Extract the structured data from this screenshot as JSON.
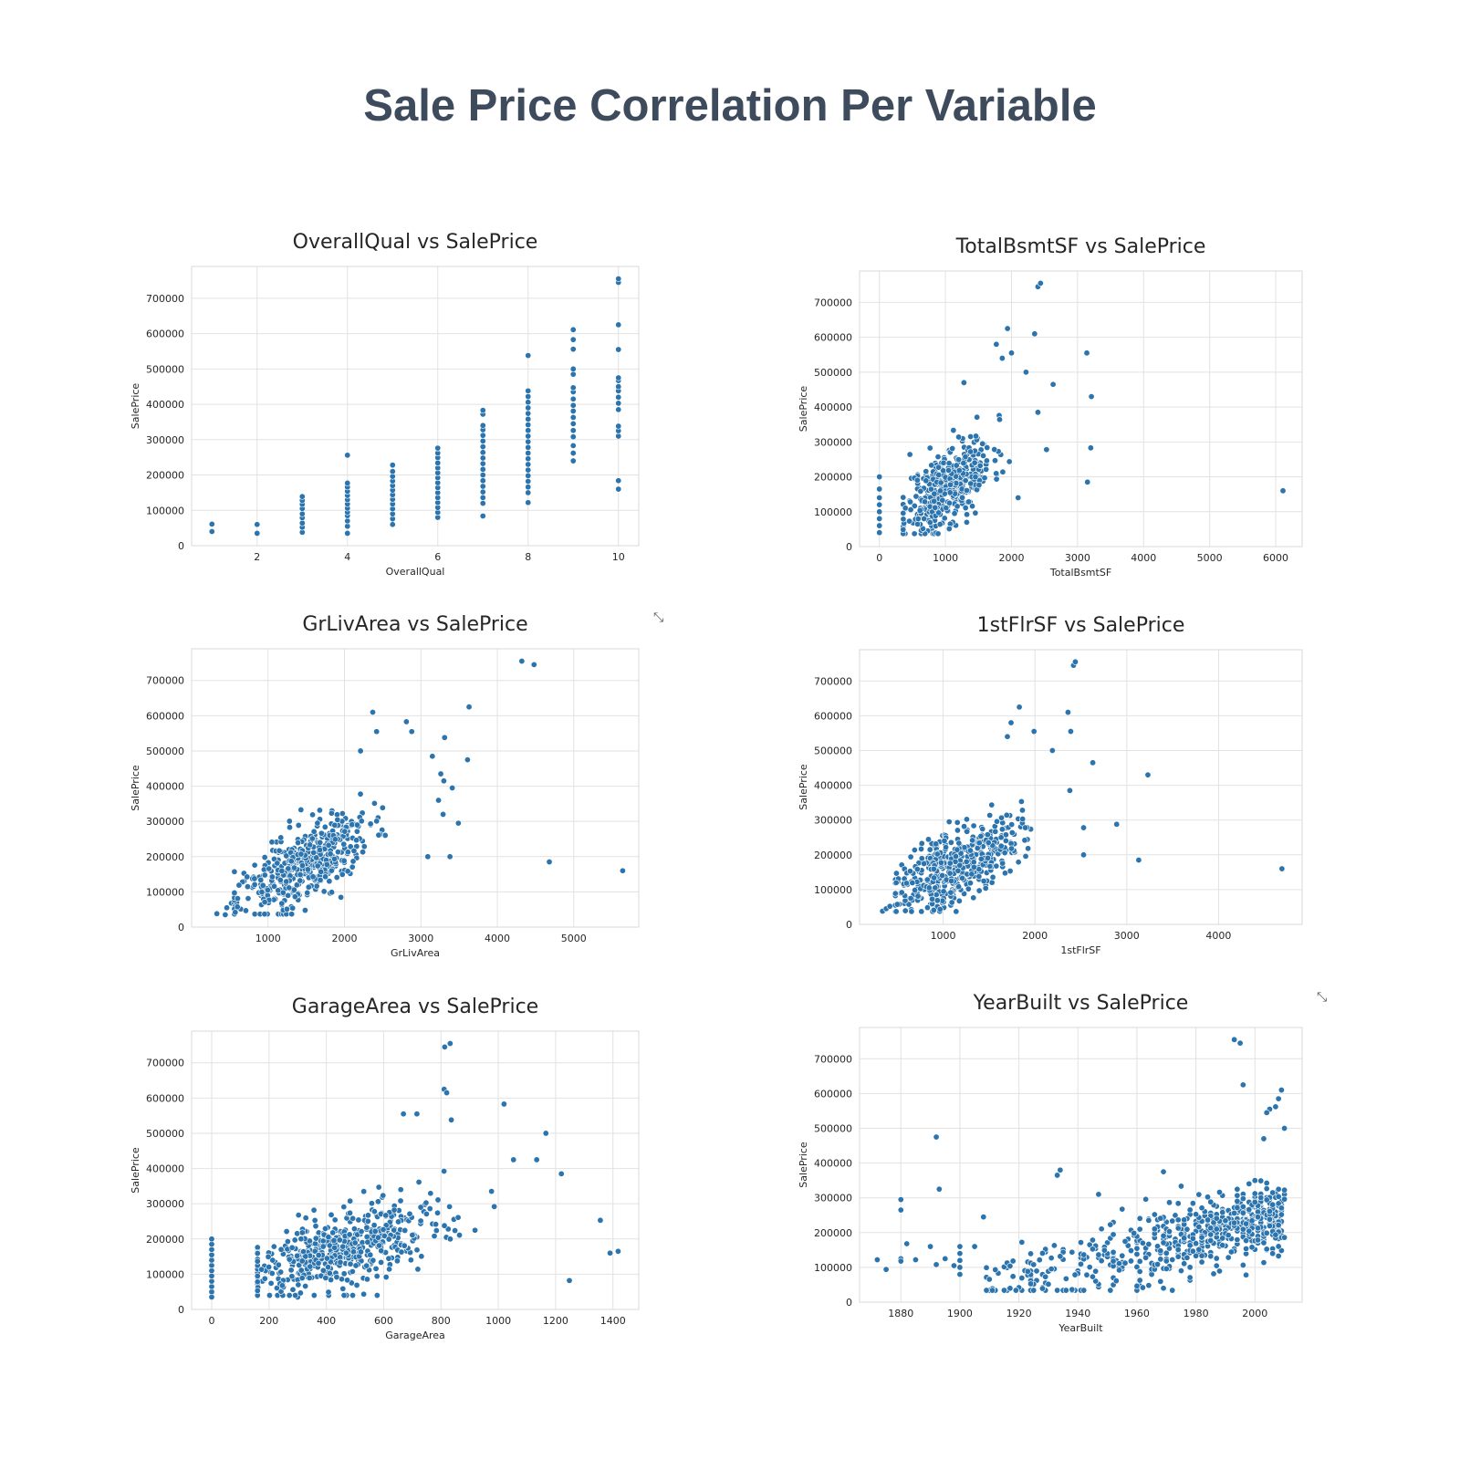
{
  "page": {
    "title": "Sale Price Correlation Per Variable"
  },
  "icons": [
    "expand-icon",
    "expand-icon"
  ],
  "chart_data": [
    {
      "id": "overallqual",
      "type": "scatter",
      "title": "OverallQual vs SalePrice",
      "xlabel": "OverallQual",
      "ylabel": "SalePrice",
      "xlim": [
        0.55,
        10.45
      ],
      "ylim": [
        0,
        790000
      ],
      "xticks": [
        2,
        4,
        6,
        8,
        10
      ],
      "yticks": [
        0,
        100000,
        200000,
        300000,
        400000,
        500000,
        600000,
        700000
      ],
      "points": [
        [
          1,
          40000
        ],
        [
          1,
          61000
        ],
        [
          2,
          35000
        ],
        [
          2,
          60000
        ],
        [
          3,
          38000
        ],
        [
          3,
          52000
        ],
        [
          3,
          64000
        ],
        [
          3,
          79000
        ],
        [
          3,
          90000
        ],
        [
          3,
          105000
        ],
        [
          3,
          117000
        ],
        [
          3,
          128000
        ],
        [
          3,
          139000
        ],
        [
          4,
          35000
        ],
        [
          4,
          55000
        ],
        [
          4,
          70000
        ],
        [
          4,
          85000
        ],
        [
          4,
          95000
        ],
        [
          4,
          106000
        ],
        [
          4,
          118000
        ],
        [
          4,
          130000
        ],
        [
          4,
          142000
        ],
        [
          4,
          154000
        ],
        [
          4,
          166000
        ],
        [
          4,
          177000
        ],
        [
          4,
          256000
        ],
        [
          5,
          60000
        ],
        [
          5,
          76000
        ],
        [
          5,
          90000
        ],
        [
          5,
          104000
        ],
        [
          5,
          118000
        ],
        [
          5,
          131000
        ],
        [
          5,
          144000
        ],
        [
          5,
          157000
        ],
        [
          5,
          170000
        ],
        [
          5,
          183000
        ],
        [
          5,
          196000
        ],
        [
          5,
          210000
        ],
        [
          5,
          228000
        ],
        [
          6,
          80000
        ],
        [
          6,
          94000
        ],
        [
          6,
          108000
        ],
        [
          6,
          122000
        ],
        [
          6,
          136000
        ],
        [
          6,
          150000
        ],
        [
          6,
          164000
        ],
        [
          6,
          178000
        ],
        [
          6,
          192000
        ],
        [
          6,
          206000
        ],
        [
          6,
          220000
        ],
        [
          6,
          234000
        ],
        [
          6,
          249000
        ],
        [
          6,
          262000
        ],
        [
          6,
          276000
        ],
        [
          7,
          84000
        ],
        [
          7,
          120000
        ],
        [
          7,
          136000
        ],
        [
          7,
          152000
        ],
        [
          7,
          168000
        ],
        [
          7,
          184000
        ],
        [
          7,
          200000
        ],
        [
          7,
          216000
        ],
        [
          7,
          232000
        ],
        [
          7,
          248000
        ],
        [
          7,
          264000
        ],
        [
          7,
          280000
        ],
        [
          7,
          296000
        ],
        [
          7,
          312000
        ],
        [
          7,
          328000
        ],
        [
          7,
          340000
        ],
        [
          7,
          372000
        ],
        [
          7,
          383000
        ],
        [
          8,
          122000
        ],
        [
          8,
          150000
        ],
        [
          8,
          166000
        ],
        [
          8,
          182000
        ],
        [
          8,
          198000
        ],
        [
          8,
          214000
        ],
        [
          8,
          230000
        ],
        [
          8,
          246000
        ],
        [
          8,
          262000
        ],
        [
          8,
          278000
        ],
        [
          8,
          294000
        ],
        [
          8,
          310000
        ],
        [
          8,
          326000
        ],
        [
          8,
          342000
        ],
        [
          8,
          358000
        ],
        [
          8,
          374000
        ],
        [
          8,
          390000
        ],
        [
          8,
          406000
        ],
        [
          8,
          422000
        ],
        [
          8,
          438000
        ],
        [
          8,
          538000
        ],
        [
          9,
          240000
        ],
        [
          9,
          262000
        ],
        [
          9,
          283000
        ],
        [
          9,
          308000
        ],
        [
          9,
          326000
        ],
        [
          9,
          345000
        ],
        [
          9,
          363000
        ],
        [
          9,
          381000
        ],
        [
          9,
          397000
        ],
        [
          9,
          415000
        ],
        [
          9,
          435000
        ],
        [
          9,
          447000
        ],
        [
          9,
          485000
        ],
        [
          9,
          500000
        ],
        [
          9,
          556000
        ],
        [
          9,
          583000
        ],
        [
          9,
          611000
        ],
        [
          10,
          160000
        ],
        [
          10,
          184000
        ],
        [
          10,
          310000
        ],
        [
          10,
          325000
        ],
        [
          10,
          338000
        ],
        [
          10,
          385000
        ],
        [
          10,
          403000
        ],
        [
          10,
          420000
        ],
        [
          10,
          438000
        ],
        [
          10,
          450000
        ],
        [
          10,
          467000
        ],
        [
          10,
          475000
        ],
        [
          10,
          555000
        ],
        [
          10,
          625000
        ],
        [
          10,
          745000
        ],
        [
          10,
          755000
        ]
      ]
    },
    {
      "id": "totalbsmtsf",
      "type": "scatter",
      "title": "TotalBsmtSF vs SalePrice",
      "xlabel": "TotalBsmtSF",
      "ylabel": "SalePrice",
      "xlim": [
        -300,
        6400
      ],
      "ylim": [
        0,
        790000
      ],
      "xticks": [
        0,
        1000,
        2000,
        3000,
        4000,
        5000,
        6000
      ],
      "yticks": [
        0,
        100000,
        200000,
        300000,
        400000,
        500000,
        600000,
        700000
      ],
      "points": [
        [
          0,
          40000
        ],
        [
          0,
          60000
        ],
        [
          0,
          80000
        ],
        [
          0,
          100000
        ],
        [
          0,
          120000
        ],
        [
          0,
          140000
        ],
        [
          0,
          165000
        ],
        [
          0,
          200000
        ],
        [
          2400,
          745000
        ],
        [
          2440,
          755000
        ],
        [
          2350,
          610000
        ],
        [
          1940,
          625000
        ],
        [
          1770,
          580000
        ],
        [
          1860,
          540000
        ],
        [
          2000,
          555000
        ],
        [
          2220,
          500000
        ],
        [
          1280,
          470000
        ],
        [
          2630,
          465000
        ],
        [
          3140,
          555000
        ],
        [
          3210,
          430000
        ],
        [
          3200,
          283000
        ],
        [
          3150,
          185000
        ],
        [
          6110,
          160000
        ],
        [
          2530,
          278000
        ],
        [
          2400,
          385000
        ],
        [
          2100,
          140000
        ]
      ],
      "cloud": {
        "n": 420,
        "x0": 1050,
        "y0": 175000,
        "sx": 330,
        "sy": 55000,
        "slope": 120,
        "xmin": 360,
        "xmax": 2300,
        "ymin": 37000,
        "ymax": 480000,
        "seed": 11
      }
    },
    {
      "id": "grlivarea",
      "type": "scatter",
      "title": "GrLivArea vs SalePrice",
      "xlabel": "GrLivArea",
      "ylabel": "SalePrice",
      "xlim": [
        0,
        5850
      ],
      "ylim": [
        0,
        790000
      ],
      "xticks": [
        1000,
        2000,
        3000,
        4000,
        5000
      ],
      "yticks": [
        0,
        100000,
        200000,
        300000,
        400000,
        500000,
        600000,
        700000
      ],
      "points": [
        [
          330,
          38000
        ],
        [
          440,
          35000
        ],
        [
          460,
          55000
        ],
        [
          520,
          68000
        ],
        [
          4320,
          755000
        ],
        [
          4480,
          745000
        ],
        [
          3630,
          625000
        ],
        [
          2370,
          610000
        ],
        [
          2810,
          583000
        ],
        [
          2880,
          555000
        ],
        [
          2420,
          555000
        ],
        [
          3310,
          538000
        ],
        [
          2210,
          500000
        ],
        [
          3150,
          485000
        ],
        [
          3610,
          475000
        ],
        [
          3260,
          435000
        ],
        [
          3300,
          415000
        ],
        [
          3410,
          395000
        ],
        [
          3230,
          360000
        ],
        [
          3290,
          320000
        ],
        [
          3490,
          295000
        ],
        [
          3090,
          200000
        ],
        [
          3380,
          200000
        ],
        [
          4680,
          185000
        ],
        [
          5640,
          160000
        ]
      ],
      "cloud": {
        "n": 480,
        "x0": 1450,
        "y0": 175000,
        "sx": 430,
        "sy": 52000,
        "slope": 105,
        "xmin": 560,
        "xmax": 3000,
        "ymin": 37000,
        "ymax": 470000,
        "seed": 23
      }
    },
    {
      "id": "1stflrsf",
      "type": "scatter",
      "title": "1stFlrSF vs SalePrice",
      "xlabel": "1stFlrSF",
      "ylabel": "SalePrice",
      "xlim": [
        90,
        4910
      ],
      "ylim": [
        0,
        790000
      ],
      "xticks": [
        1000,
        2000,
        3000,
        4000
      ],
      "yticks": [
        0,
        100000,
        200000,
        300000,
        400000,
        500000,
        600000,
        700000
      ],
      "points": [
        [
          340,
          38000
        ],
        [
          380,
          45000
        ],
        [
          420,
          52000
        ],
        [
          2420,
          745000
        ],
        [
          2440,
          755000
        ],
        [
          1830,
          625000
        ],
        [
          2360,
          610000
        ],
        [
          1740,
          580000
        ],
        [
          1700,
          540000
        ],
        [
          1990,
          555000
        ],
        [
          2390,
          555000
        ],
        [
          2190,
          500000
        ],
        [
          2630,
          465000
        ],
        [
          3230,
          430000
        ],
        [
          2890,
          288000
        ],
        [
          2530,
          278000
        ],
        [
          2530,
          200000
        ],
        [
          3130,
          185000
        ],
        [
          4690,
          160000
        ],
        [
          2380,
          385000
        ]
      ],
      "cloud": {
        "n": 460,
        "x0": 1140,
        "y0": 175000,
        "sx": 340,
        "sy": 53000,
        "slope": 118,
        "xmin": 480,
        "xmax": 2300,
        "ymin": 37000,
        "ymax": 470000,
        "seed": 37
      }
    },
    {
      "id": "garagearea",
      "type": "scatter",
      "title": "GarageArea vs SalePrice",
      "xlabel": "GarageArea",
      "ylabel": "SalePrice",
      "xlim": [
        -70,
        1490
      ],
      "ylim": [
        0,
        790000
      ],
      "xticks": [
        0,
        200,
        400,
        600,
        800,
        1000,
        1200,
        1400
      ],
      "yticks": [
        0,
        100000,
        200000,
        300000,
        400000,
        500000,
        600000,
        700000
      ],
      "points": [
        [
          0,
          35000
        ],
        [
          0,
          50000
        ],
        [
          0,
          65000
        ],
        [
          0,
          80000
        ],
        [
          0,
          95000
        ],
        [
          0,
          110000
        ],
        [
          0,
          125000
        ],
        [
          0,
          140000
        ],
        [
          0,
          155000
        ],
        [
          0,
          170000
        ],
        [
          0,
          185000
        ],
        [
          0,
          200000
        ],
        [
          813,
          745000
        ],
        [
          832,
          755000
        ],
        [
          811,
          625000
        ],
        [
          820,
          615000
        ],
        [
          669,
          555000
        ],
        [
          716,
          555000
        ],
        [
          836,
          538000
        ],
        [
          1020,
          583000
        ],
        [
          1166,
          500000
        ],
        [
          1220,
          385000
        ],
        [
          1134,
          425000
        ],
        [
          1053,
          425000
        ],
        [
          1248,
          82000
        ],
        [
          1356,
          253000
        ],
        [
          1390,
          160000
        ],
        [
          1418,
          165000
        ],
        [
          300,
          35000
        ]
      ],
      "cloud": {
        "n": 520,
        "x0": 470,
        "y0": 170000,
        "sx": 185,
        "sy": 55000,
        "slope": 230,
        "xmin": 160,
        "xmax": 1000,
        "ymin": 40000,
        "ymax": 480000,
        "seed": 53
      }
    },
    {
      "id": "yearbuilt",
      "type": "scatter",
      "title": "YearBuilt vs SalePrice",
      "xlabel": "YearBuilt",
      "ylabel": "SalePrice",
      "xlim": [
        1866,
        2016
      ],
      "ylim": [
        0,
        790000
      ],
      "xticks": [
        1880,
        1900,
        1920,
        1940,
        1960,
        1980,
        2000
      ],
      "yticks": [
        0,
        100000,
        200000,
        300000,
        400000,
        500000,
        600000,
        700000
      ],
      "points": [
        [
          1872,
          122000
        ],
        [
          1875,
          94000
        ],
        [
          1880,
          295000
        ],
        [
          1880,
          265000
        ],
        [
          1880,
          125000
        ],
        [
          1880,
          118000
        ],
        [
          1882,
          168000
        ],
        [
          1885,
          122000
        ],
        [
          1890,
          160000
        ],
        [
          1892,
          475000
        ],
        [
          1893,
          325000
        ],
        [
          1892,
          108000
        ],
        [
          1895,
          125000
        ],
        [
          1898,
          105000
        ],
        [
          1900,
          80000
        ],
        [
          1900,
          100000
        ],
        [
          1900,
          120000
        ],
        [
          1900,
          140000
        ],
        [
          1900,
          160000
        ],
        [
          1905,
          160000
        ],
        [
          1908,
          245000
        ],
        [
          1995,
          745000
        ],
        [
          1993,
          755000
        ],
        [
          1996,
          625000
        ],
        [
          2009,
          610000
        ],
        [
          2008,
          585000
        ],
        [
          2007,
          562000
        ],
        [
          2005,
          555000
        ],
        [
          2004,
          545000
        ],
        [
          2010,
          500000
        ],
        [
          2003,
          470000
        ],
        [
          1934,
          380000
        ],
        [
          1933,
          365000
        ],
        [
          1947,
          310000
        ],
        [
          1969,
          375000
        ]
      ],
      "cloud": {
        "n": 620,
        "x0": 1965,
        "y0": 160000,
        "sx": 32,
        "sy": 50000,
        "slope": 2300,
        "xmin": 1908,
        "xmax": 2010,
        "ymin": 34000,
        "ymax": 440000,
        "seed": 71,
        "skew": true
      }
    }
  ]
}
